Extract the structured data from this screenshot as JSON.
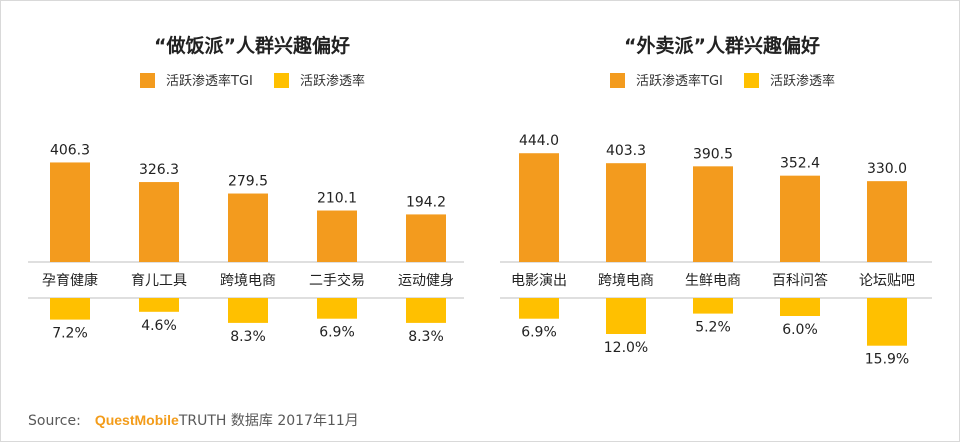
{
  "colors": {
    "tgi": "#f39b1e",
    "rate": "#ffc000",
    "axis": "#bfbfbf",
    "label_box": "#ffffff"
  },
  "chart_data": [
    {
      "type": "bar",
      "title": "“做饭派”人群兴趣偏好",
      "legend": [
        "活跃渗透率TGI",
        "活跃渗透率"
      ],
      "legend_position": "top-center",
      "categories": [
        "孕育健康",
        "育儿工具",
        "跨境电商",
        "二手交易",
        "运动健身"
      ],
      "series": [
        {
          "name": "活跃渗透率TGI",
          "values": [
            406.3,
            326.3,
            279.5,
            210.1,
            194.2
          ],
          "labels": [
            "406.3",
            "326.3",
            "279.5",
            "210.1",
            "194.2"
          ]
        },
        {
          "name": "活跃渗透率",
          "values": [
            7.2,
            4.6,
            8.3,
            6.9,
            8.3
          ],
          "labels": [
            "7.2%",
            "4.6%",
            "8.3%",
            "6.9%",
            "8.3%"
          ]
        }
      ]
    },
    {
      "type": "bar",
      "title": "“外卖派”人群兴趣偏好",
      "legend": [
        "活跃渗透率TGI",
        "活跃渗透率"
      ],
      "legend_position": "top-center",
      "categories": [
        "电影演出",
        "跨境电商",
        "生鲜电商",
        "百科问答",
        "论坛贴吧"
      ],
      "series": [
        {
          "name": "活跃渗透率TGI",
          "values": [
            444.0,
            403.3,
            390.5,
            352.4,
            330.0
          ],
          "labels": [
            "444.0",
            "403.3",
            "390.5",
            "352.4",
            "330.0"
          ]
        },
        {
          "name": "活跃渗透率",
          "values": [
            6.9,
            12.0,
            5.2,
            6.0,
            15.9
          ],
          "labels": [
            "6.9%",
            "12.0%",
            "5.2%",
            "6.0%",
            "15.9%"
          ]
        }
      ]
    }
  ],
  "footer": {
    "source_label": "Source:",
    "brand": "QuestMobile",
    "rest": "TRUTH 数据库 2017年11月"
  }
}
